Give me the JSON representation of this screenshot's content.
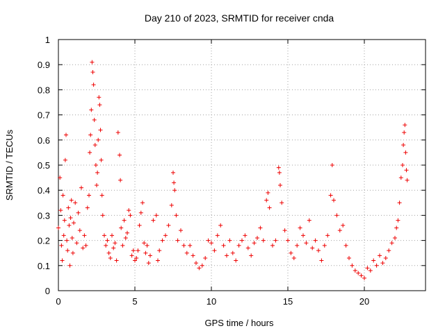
{
  "chart_data": {
    "type": "scatter",
    "title": "Day 210 of 2023, SRMTID for receiver cnda",
    "xlabel": "GPS time / hours",
    "ylabel": "SRMTID / TECUs",
    "xlim": [
      0,
      24
    ],
    "ylim": [
      0,
      1
    ],
    "x_ticks": [
      0,
      5,
      10,
      15,
      20
    ],
    "x_tick_labels": [
      "0",
      "5",
      "10",
      "15",
      "20"
    ],
    "y_ticks": [
      0,
      0.1,
      0.2,
      0.3,
      0.4,
      0.5,
      0.6,
      0.7,
      0.8,
      0.9,
      1
    ],
    "y_tick_labels": [
      "0",
      "0.1",
      "0.2",
      "0.3",
      "0.4",
      "0.5",
      "0.6",
      "0.7",
      "0.8",
      "0.9",
      "1"
    ],
    "grid": true,
    "marker": "+",
    "color": "#ee0000",
    "series": [
      {
        "name": "SRMTID",
        "points": [
          [
            0.0,
            0.25
          ],
          [
            0.1,
            0.45
          ],
          [
            0.15,
            0.32
          ],
          [
            0.2,
            0.18
          ],
          [
            0.25,
            0.12
          ],
          [
            0.3,
            0.38
          ],
          [
            0.35,
            0.22
          ],
          [
            0.4,
            0.28
          ],
          [
            0.45,
            0.52
          ],
          [
            0.5,
            0.62
          ],
          [
            0.55,
            0.2
          ],
          [
            0.6,
            0.16
          ],
          [
            0.65,
            0.33
          ],
          [
            0.7,
            0.26
          ],
          [
            0.75,
            0.1
          ],
          [
            0.8,
            0.29
          ],
          [
            0.85,
            0.36
          ],
          [
            0.9,
            0.21
          ],
          [
            0.95,
            0.15
          ],
          [
            1.0,
            0.27
          ],
          [
            1.1,
            0.35
          ],
          [
            1.2,
            0.19
          ],
          [
            1.3,
            0.31
          ],
          [
            1.4,
            0.24
          ],
          [
            1.5,
            0.41
          ],
          [
            1.6,
            0.17
          ],
          [
            1.7,
            0.22
          ],
          [
            1.8,
            0.18
          ],
          [
            1.9,
            0.33
          ],
          [
            2.0,
            0.38
          ],
          [
            2.05,
            0.55
          ],
          [
            2.1,
            0.62
          ],
          [
            2.15,
            0.72
          ],
          [
            2.2,
            0.91
          ],
          [
            2.25,
            0.87
          ],
          [
            2.3,
            0.82
          ],
          [
            2.35,
            0.68
          ],
          [
            2.4,
            0.58
          ],
          [
            2.45,
            0.5
          ],
          [
            2.5,
            0.42
          ],
          [
            2.55,
            0.47
          ],
          [
            2.6,
            0.6
          ],
          [
            2.65,
            0.77
          ],
          [
            2.7,
            0.74
          ],
          [
            2.75,
            0.64
          ],
          [
            2.8,
            0.52
          ],
          [
            2.85,
            0.38
          ],
          [
            2.9,
            0.3
          ],
          [
            3.0,
            0.22
          ],
          [
            3.1,
            0.18
          ],
          [
            3.2,
            0.2
          ],
          [
            3.3,
            0.15
          ],
          [
            3.4,
            0.13
          ],
          [
            3.5,
            0.22
          ],
          [
            3.6,
            0.17
          ],
          [
            3.7,
            0.19
          ],
          [
            3.8,
            0.12
          ],
          [
            3.9,
            0.63
          ],
          [
            4.0,
            0.54
          ],
          [
            4.05,
            0.44
          ],
          [
            4.1,
            0.25
          ],
          [
            4.2,
            0.18
          ],
          [
            4.3,
            0.28
          ],
          [
            4.4,
            0.21
          ],
          [
            4.5,
            0.23
          ],
          [
            4.6,
            0.32
          ],
          [
            4.7,
            0.3
          ],
          [
            4.8,
            0.14
          ],
          [
            4.9,
            0.16
          ],
          [
            5.0,
            0.12
          ],
          [
            5.1,
            0.13
          ],
          [
            5.2,
            0.16
          ],
          [
            5.3,
            0.26
          ],
          [
            5.4,
            0.31
          ],
          [
            5.5,
            0.35
          ],
          [
            5.6,
            0.19
          ],
          [
            5.7,
            0.15
          ],
          [
            5.8,
            0.18
          ],
          [
            5.9,
            0.11
          ],
          [
            6.0,
            0.14
          ],
          [
            6.2,
            0.28
          ],
          [
            6.4,
            0.3
          ],
          [
            6.5,
            0.12
          ],
          [
            6.6,
            0.16
          ],
          [
            6.8,
            0.2
          ],
          [
            7.0,
            0.22
          ],
          [
            7.2,
            0.26
          ],
          [
            7.4,
            0.34
          ],
          [
            7.5,
            0.47
          ],
          [
            7.55,
            0.43
          ],
          [
            7.6,
            0.4
          ],
          [
            7.7,
            0.3
          ],
          [
            7.8,
            0.2
          ],
          [
            8.0,
            0.24
          ],
          [
            8.2,
            0.18
          ],
          [
            8.4,
            0.15
          ],
          [
            8.6,
            0.18
          ],
          [
            8.8,
            0.14
          ],
          [
            9.0,
            0.11
          ],
          [
            9.2,
            0.09
          ],
          [
            9.4,
            0.1
          ],
          [
            9.6,
            0.13
          ],
          [
            9.8,
            0.2
          ],
          [
            10.0,
            0.19
          ],
          [
            10.2,
            0.16
          ],
          [
            10.4,
            0.22
          ],
          [
            10.6,
            0.26
          ],
          [
            10.8,
            0.18
          ],
          [
            11.0,
            0.14
          ],
          [
            11.2,
            0.2
          ],
          [
            11.4,
            0.15
          ],
          [
            11.6,
            0.12
          ],
          [
            11.8,
            0.18
          ],
          [
            12.0,
            0.2
          ],
          [
            12.2,
            0.22
          ],
          [
            12.4,
            0.17
          ],
          [
            12.6,
            0.14
          ],
          [
            12.8,
            0.19
          ],
          [
            13.0,
            0.21
          ],
          [
            13.2,
            0.25
          ],
          [
            13.4,
            0.2
          ],
          [
            13.6,
            0.36
          ],
          [
            13.7,
            0.39
          ],
          [
            13.8,
            0.33
          ],
          [
            14.0,
            0.18
          ],
          [
            14.2,
            0.2
          ],
          [
            14.4,
            0.49
          ],
          [
            14.45,
            0.47
          ],
          [
            14.5,
            0.42
          ],
          [
            14.6,
            0.35
          ],
          [
            14.8,
            0.24
          ],
          [
            15.0,
            0.2
          ],
          [
            15.2,
            0.15
          ],
          [
            15.4,
            0.13
          ],
          [
            15.6,
            0.18
          ],
          [
            15.8,
            0.25
          ],
          [
            16.0,
            0.22
          ],
          [
            16.2,
            0.19
          ],
          [
            16.4,
            0.28
          ],
          [
            16.6,
            0.17
          ],
          [
            16.8,
            0.2
          ],
          [
            17.0,
            0.16
          ],
          [
            17.2,
            0.12
          ],
          [
            17.4,
            0.18
          ],
          [
            17.6,
            0.22
          ],
          [
            17.8,
            0.38
          ],
          [
            17.9,
            0.5
          ],
          [
            18.0,
            0.36
          ],
          [
            18.2,
            0.3
          ],
          [
            18.4,
            0.24
          ],
          [
            18.6,
            0.26
          ],
          [
            18.8,
            0.18
          ],
          [
            19.0,
            0.13
          ],
          [
            19.2,
            0.1
          ],
          [
            19.4,
            0.08
          ],
          [
            19.6,
            0.07
          ],
          [
            19.8,
            0.06
          ],
          [
            20.0,
            0.05
          ],
          [
            20.2,
            0.09
          ],
          [
            20.4,
            0.08
          ],
          [
            20.6,
            0.12
          ],
          [
            20.8,
            0.1
          ],
          [
            21.0,
            0.14
          ],
          [
            21.2,
            0.11
          ],
          [
            21.4,
            0.13
          ],
          [
            21.6,
            0.16
          ],
          [
            21.8,
            0.19
          ],
          [
            22.0,
            0.21
          ],
          [
            22.1,
            0.25
          ],
          [
            22.2,
            0.28
          ],
          [
            22.3,
            0.35
          ],
          [
            22.4,
            0.45
          ],
          [
            22.5,
            0.5
          ],
          [
            22.55,
            0.58
          ],
          [
            22.6,
            0.63
          ],
          [
            22.65,
            0.66
          ],
          [
            22.7,
            0.55
          ],
          [
            22.75,
            0.48
          ],
          [
            22.8,
            0.44
          ]
        ]
      }
    ]
  }
}
